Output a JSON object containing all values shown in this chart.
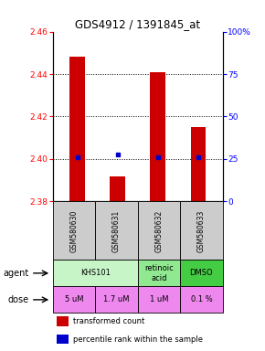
{
  "title": "GDS4912 / 1391845_at",
  "samples": [
    "GSM580630",
    "GSM580631",
    "GSM580632",
    "GSM580633"
  ],
  "bar_bottoms": [
    2.38,
    2.38,
    2.38,
    2.38
  ],
  "bar_tops": [
    2.448,
    2.392,
    2.441,
    2.415
  ],
  "percentile_values": [
    2.401,
    2.402,
    2.401,
    2.401
  ],
  "ylim_left": [
    2.38,
    2.46
  ],
  "ylim_right": [
    0,
    100
  ],
  "yticks_left": [
    2.38,
    2.4,
    2.42,
    2.44,
    2.46
  ],
  "yticks_right": [
    0,
    25,
    50,
    75,
    100
  ],
  "ytick_labels_right": [
    "0",
    "25",
    "50",
    "75",
    "100%"
  ],
  "bar_color": "#cc0000",
  "percentile_color": "#0000cc",
  "agent_configs": [
    [
      0,
      2,
      "KHS101",
      "#c8f5c8"
    ],
    [
      2,
      1,
      "retinoic\nacid",
      "#90e890"
    ],
    [
      3,
      1,
      "DMSO",
      "#44cc44"
    ]
  ],
  "dose_labels": [
    "5 uM",
    "1.7 uM",
    "1 uM",
    "0.1 %"
  ],
  "dose_color": "#ee88ee",
  "sample_bg_color": "#cccccc",
  "legend_bar_color": "#cc0000",
  "legend_dot_color": "#0000cc",
  "legend_bar_label": "transformed count",
  "legend_dot_label": "percentile rank within the sample"
}
